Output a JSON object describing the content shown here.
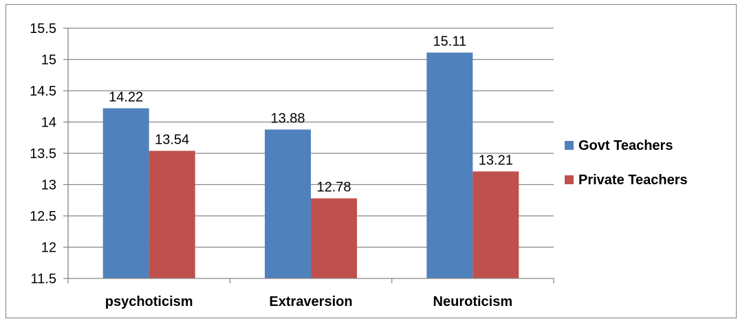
{
  "chart_data": {
    "type": "bar",
    "categories": [
      "psychoticism",
      "Extraversion",
      "Neuroticism"
    ],
    "series": [
      {
        "name": "Govt Teachers",
        "values": [
          14.22,
          13.88,
          15.11
        ],
        "color": "#4F81BD"
      },
      {
        "name": "Private Teachers",
        "values": [
          13.54,
          12.78,
          13.21
        ],
        "color": "#C0504D"
      }
    ],
    "data_labels": [
      [
        "14.22",
        "13.88",
        "15.11"
      ],
      [
        "13.54",
        "12.78",
        "13.21"
      ]
    ],
    "ylim": [
      11.5,
      15.5
    ],
    "y_ticks": [
      "15.5",
      "15",
      "14.5",
      "14",
      "13.5",
      "13",
      "12.5",
      "12",
      "11.5"
    ],
    "y_tick_values": [
      15.5,
      15,
      14.5,
      14,
      13.5,
      13,
      12.5,
      12,
      11.5
    ],
    "grid": true,
    "legend_position": "right",
    "title": "",
    "xlabel": "",
    "ylabel": ""
  }
}
